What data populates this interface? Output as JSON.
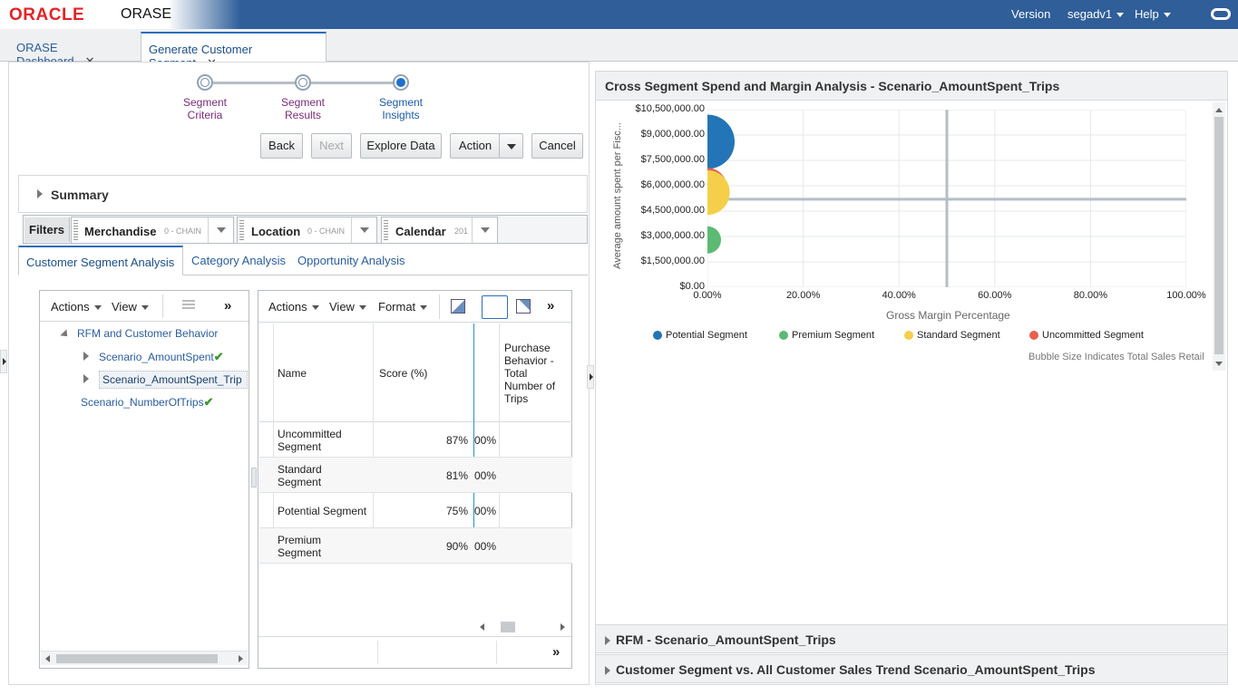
{
  "header": {
    "logo": "ORACLE",
    "app_name": "ORASE",
    "version": "Version",
    "user": "segadv1",
    "help": "Help"
  },
  "tabs": [
    {
      "label": "ORASE Dashboard"
    },
    {
      "label": "Generate Customer Segment"
    }
  ],
  "train": {
    "steps": [
      {
        "label1": "Segment",
        "label2": "Criteria"
      },
      {
        "label1": "Segment",
        "label2": "Results"
      },
      {
        "label1": "Segment",
        "label2": "Insights"
      }
    ],
    "current": 2
  },
  "buttons": {
    "back": "Back",
    "next": "Next",
    "explore": "Explore Data",
    "action": "Action",
    "cancel": "Cancel"
  },
  "summary": {
    "label": "Summary"
  },
  "filters": {
    "label": "Filters",
    "items": [
      {
        "name": "Merchandise",
        "value": "0 - CHAIN"
      },
      {
        "name": "Location",
        "value": "0 - CHAIN"
      },
      {
        "name": "Calendar",
        "value": "201"
      }
    ]
  },
  "subtabs": [
    "Customer Segment Analysis",
    "Category Analysis",
    "Opportunity Analysis"
  ],
  "tree_toolbar": {
    "actions": "Actions",
    "view": "View",
    "more": "»"
  },
  "tree": {
    "root": "RFM and Customer Behavior",
    "children": [
      "Scenario_AmountSpent",
      "Scenario_AmountSpent_Trip"
    ],
    "other": "Scenario_NumberOfTrips"
  },
  "table_toolbar": {
    "actions": "Actions",
    "view": "View",
    "format": "Format",
    "more": "»"
  },
  "table": {
    "headers": {
      "name": "Name",
      "score": "Score (%)",
      "purchase": "Purchase Behavior - Total Number of Trips"
    },
    "purchase_lines": [
      "Purchase",
      "Behavior -",
      "Total",
      "Number of",
      "Trips"
    ],
    "rows": [
      {
        "name1": "Uncommitted",
        "name2": "Segment",
        "score": "87%",
        "partial": "00%"
      },
      {
        "name1": "Standard",
        "name2": "Segment",
        "score": "81%",
        "partial": "00%"
      },
      {
        "name1": "Potential Segment",
        "name2": "",
        "score": "75%",
        "partial": "00%"
      },
      {
        "name1": "Premium",
        "name2": "Segment",
        "score": "90%",
        "partial": "00%"
      }
    ],
    "footer_more": "»"
  },
  "right": {
    "chart_title": "Cross Segment Spend and Margin Analysis - Scenario_AmountSpent_Trips",
    "rfm_title": "RFM - Scenario_AmountSpent_Trips",
    "trend_title": "Customer Segment vs. All Customer Sales Trend Scenario_AmountSpent_Trips"
  },
  "chart_data": {
    "type": "bubble",
    "title": "Cross Segment Spend and Margin Analysis - Scenario_AmountSpent_Trips",
    "xlabel": "Gross Margin Percentage",
    "ylabel": "Average amount spent per Fisc...",
    "xlim": [
      0,
      100
    ],
    "ylim": [
      0,
      10500000
    ],
    "x_ticks": [
      "0.00%",
      "20.00%",
      "40.00%",
      "60.00%",
      "80.00%",
      "100.00%"
    ],
    "y_ticks": [
      "$0.00",
      "$1,500,000.00",
      "$3,000,000.00",
      "$4,500,000.00",
      "$6,000,000.00",
      "$7,500,000.00",
      "$9,000,000.00",
      "$10,500,000.00"
    ],
    "reference_lines": {
      "x": 50,
      "y": 5200000
    },
    "series": [
      {
        "name": "Potential Segment",
        "color": "#2475b7",
        "x": 0,
        "y": 8600000,
        "size": 1.0
      },
      {
        "name": "Uncommitted Segment",
        "color": "#e8604c",
        "x": 0,
        "y": 5900000,
        "size": 0.72
      },
      {
        "name": "Standard Segment",
        "color": "#f5cf49",
        "x": 0,
        "y": 5600000,
        "size": 0.82
      },
      {
        "name": "Premium Segment",
        "color": "#5cba73",
        "x": 0,
        "y": 2800000,
        "size": 0.5
      }
    ],
    "legend": [
      "Potential Segment",
      "Premium Segment",
      "Standard Segment",
      "Uncommitted Segment"
    ],
    "note": "Bubble Size Indicates Total Sales Retail"
  }
}
